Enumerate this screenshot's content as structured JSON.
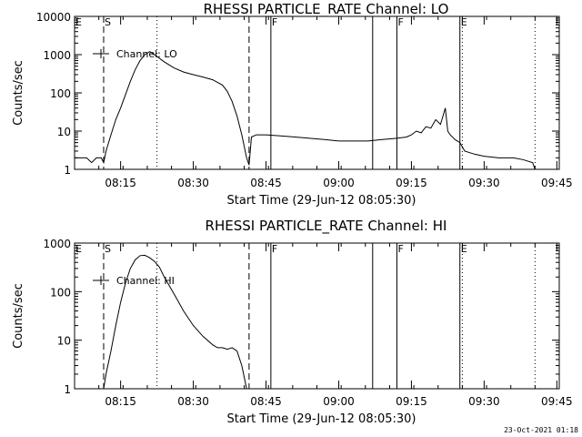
{
  "chart_data": [
    {
      "type": "line",
      "title": "RHESSI PARTICLE_RATE Channel: LO",
      "xlabel": "Start Time (29-Jun-12 08:05:30)",
      "ylabel": "Counts/sec",
      "yscale": "log",
      "ylim": [
        1,
        10000
      ],
      "xlim_minutes": [
        0,
        100
      ],
      "xticks": [
        "08:15",
        "08:30",
        "08:45",
        "09:00",
        "09:15",
        "09:30",
        "09:45"
      ],
      "yticks": [
        "1",
        "10",
        "100",
        "1000",
        "10000"
      ],
      "legend": "Channel: LO",
      "legend_position": "top-left",
      "flags": [
        {
          "label": "E",
          "time": "08:05:30"
        },
        {
          "label": "S",
          "time": "08:11:30"
        },
        {
          "label": "F",
          "time": "08:46"
        },
        {
          "label": "F",
          "time": "09:12"
        },
        {
          "label": "E",
          "time": "09:25"
        }
      ],
      "series": [
        {
          "name": "Channel: LO",
          "x": [
            "08:05:30",
            "08:08",
            "08:09",
            "08:10",
            "08:11",
            "08:11:30",
            "08:12",
            "08:13",
            "08:14",
            "08:15",
            "08:16",
            "08:17",
            "08:18",
            "08:19",
            "08:20",
            "08:21",
            "08:22",
            "08:24",
            "08:26",
            "08:28",
            "08:30",
            "08:32",
            "08:34",
            "08:36",
            "08:37",
            "08:38",
            "08:39",
            "08:40",
            "08:41",
            "08:41:30",
            "08:42",
            "08:43",
            "08:45",
            "08:48",
            "08:51",
            "08:54",
            "08:57",
            "09:00",
            "09:03",
            "09:06",
            "09:09",
            "09:12",
            "09:14",
            "09:15",
            "09:16",
            "09:17",
            "09:18",
            "09:19",
            "09:20",
            "09:21",
            "09:22",
            "09:22:30",
            "09:23",
            "09:24",
            "09:25",
            "09:26",
            "09:28",
            "09:30",
            "09:33",
            "09:36",
            "09:38",
            "09:40",
            "09:40:30"
          ],
          "y": [
            2,
            2,
            1.5,
            2,
            2,
            1.5,
            3,
            8,
            20,
            40,
            90,
            200,
            400,
            700,
            1000,
            1200,
            1000,
            650,
            450,
            350,
            300,
            260,
            220,
            160,
            110,
            60,
            25,
            8,
            2,
            1.3,
            7,
            8,
            8,
            7.5,
            7,
            6.5,
            6,
            5.5,
            5.5,
            5.5,
            6,
            6.5,
            7,
            8,
            10,
            9,
            13,
            12,
            20,
            15,
            40,
            10,
            8,
            6,
            5,
            3,
            2.5,
            2.2,
            2,
            2,
            1.8,
            1.5,
            1
          ]
        }
      ],
      "vlines": [
        {
          "time": "08:11:30",
          "style": "dashed"
        },
        {
          "time": "08:41:30",
          "style": "dashed"
        },
        {
          "time": "08:22:30",
          "style": "dotted"
        },
        {
          "time": "09:25:30",
          "style": "dotted"
        },
        {
          "time": "09:40:30",
          "style": "dotted"
        },
        {
          "time": "08:46",
          "style": "solid"
        },
        {
          "time": "09:07",
          "style": "solid"
        },
        {
          "time": "09:12",
          "style": "solid"
        },
        {
          "time": "09:25",
          "style": "solid"
        }
      ]
    },
    {
      "type": "line",
      "title": "RHESSI PARTICLE_RATE Channel: HI",
      "xlabel": "Start Time (29-Jun-12 08:05:30)",
      "ylabel": "Counts/sec",
      "yscale": "log",
      "ylim": [
        1,
        1000
      ],
      "xlim_minutes": [
        0,
        100
      ],
      "xticks": [
        "08:15",
        "08:30",
        "08:45",
        "09:00",
        "09:15",
        "09:30",
        "09:45"
      ],
      "yticks": [
        "1",
        "10",
        "100",
        "1000"
      ],
      "legend": "Channel: HI",
      "legend_position": "top-left",
      "flags": [
        {
          "label": "E",
          "time": "08:05:30"
        },
        {
          "label": "S",
          "time": "08:11:30"
        },
        {
          "label": "F",
          "time": "08:46"
        },
        {
          "label": "F",
          "time": "09:12"
        },
        {
          "label": "E",
          "time": "09:25"
        }
      ],
      "series": [
        {
          "name": "Channel: HI",
          "x": [
            "08:11:30",
            "08:12",
            "08:13",
            "08:14",
            "08:15",
            "08:16",
            "08:17",
            "08:18",
            "08:19",
            "08:20",
            "08:21",
            "08:22",
            "08:23",
            "08:24",
            "08:26",
            "08:28",
            "08:30",
            "08:32",
            "08:34",
            "08:35",
            "08:36",
            "08:37",
            "08:38",
            "08:39",
            "08:40",
            "08:41"
          ],
          "y": [
            1,
            2,
            6,
            20,
            60,
            150,
            300,
            450,
            550,
            560,
            500,
            420,
            320,
            200,
            90,
            40,
            20,
            12,
            8,
            7,
            7,
            6.5,
            7,
            6,
            3,
            1
          ]
        }
      ],
      "vlines": [
        {
          "time": "08:11:30",
          "style": "dashed"
        },
        {
          "time": "08:41:30",
          "style": "dashed"
        },
        {
          "time": "08:22:30",
          "style": "dotted"
        },
        {
          "time": "09:25:30",
          "style": "dotted"
        },
        {
          "time": "09:40:30",
          "style": "dotted"
        },
        {
          "time": "08:46",
          "style": "solid"
        },
        {
          "time": "09:07",
          "style": "solid"
        },
        {
          "time": "09:12",
          "style": "solid"
        },
        {
          "time": "09:25",
          "style": "solid"
        }
      ]
    }
  ],
  "footer": {
    "timestamp": "23-Oct-2021 01:18"
  }
}
